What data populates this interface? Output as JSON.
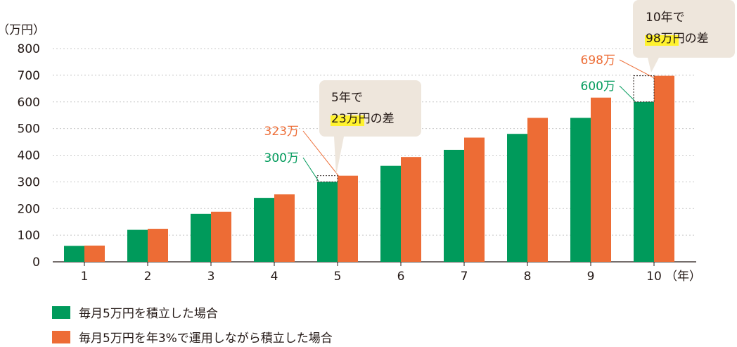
{
  "chart_data": {
    "type": "bar",
    "y_unit": "（万円）",
    "x_unit": "（年）",
    "ylim": [
      0,
      800
    ],
    "yticks": [
      0,
      100,
      200,
      300,
      400,
      500,
      600,
      700,
      800
    ],
    "grid": true,
    "categories": [
      "1",
      "2",
      "3",
      "4",
      "5",
      "6",
      "7",
      "8",
      "9",
      "10"
    ],
    "series": [
      {
        "name": "毎月5万円を積立した場合",
        "color": "#009A5B",
        "values": [
          60,
          120,
          180,
          240,
          300,
          360,
          420,
          480,
          540,
          600
        ]
      },
      {
        "name": "毎月5万円を年3%で運用しながら積立した場合",
        "color": "#ED6C35",
        "values": [
          61,
          124,
          188,
          253,
          323,
          393,
          466,
          540,
          616,
          698
        ]
      }
    ],
    "annotations": [
      {
        "category": "5",
        "green_label": "300万",
        "orange_label": "323万",
        "callout_line1": "5年で",
        "callout_line2_highlight": "23万円",
        "callout_line2_rest": "の差"
      },
      {
        "category": "10",
        "green_label": "600万",
        "orange_label": "698万",
        "callout_line1": "10年で",
        "callout_line2_highlight": "98万円",
        "callout_line2_rest": "の差"
      }
    ]
  },
  "colors": {
    "green": "#009A5B",
    "orange": "#ED6C35",
    "callout_bg": "#EEE6DC",
    "highlight": "#FFF22E",
    "grid": "#C8C8C8"
  }
}
